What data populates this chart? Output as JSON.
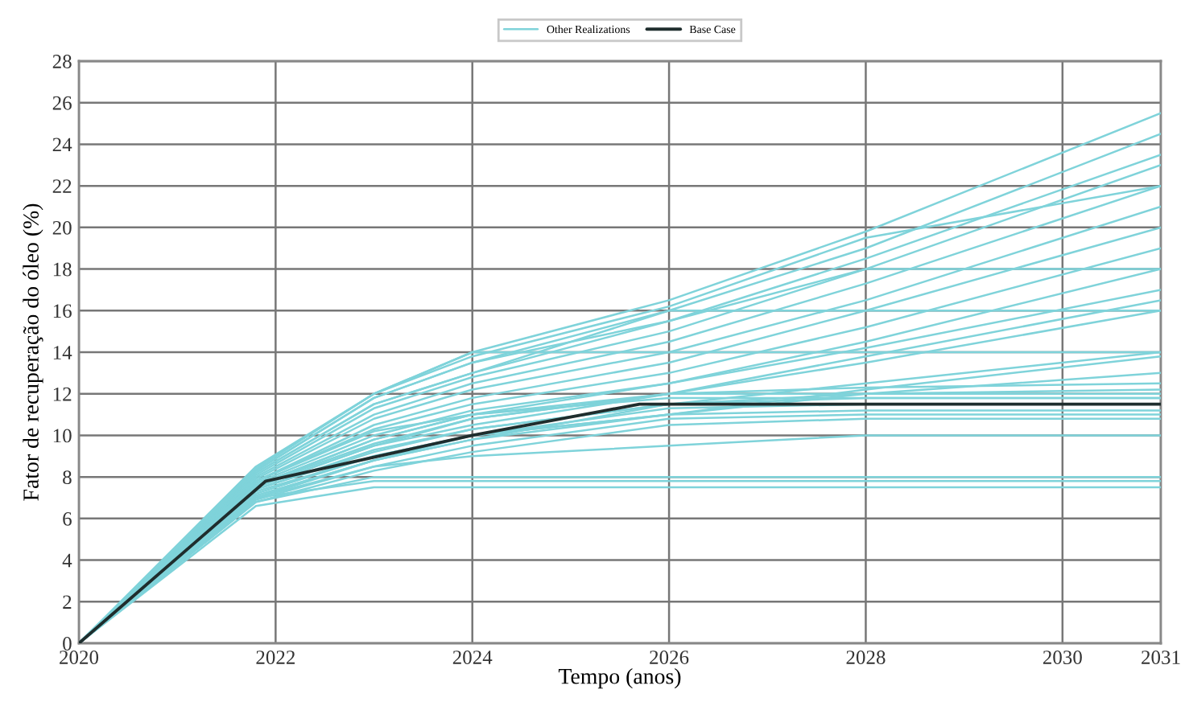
{
  "chart_data": {
    "type": "line",
    "xlabel": "Tempo (anos)",
    "ylabel": "Fator de recuperação do óleo (%)",
    "xlim": [
      2020,
      2031
    ],
    "xticks": [
      2020,
      2022,
      2024,
      2026,
      2028,
      2030,
      2031
    ],
    "ylim": [
      0,
      28
    ],
    "yticks": [
      0,
      2,
      4,
      6,
      8,
      10,
      12,
      14,
      16,
      18,
      20,
      22,
      24,
      26,
      28
    ],
    "grid": true,
    "legend": "top",
    "x": [
      2020,
      2021.8,
      2023,
      2024,
      2026,
      2028,
      2031
    ],
    "series": [
      {
        "name": "Other Realizations",
        "color": "#7fd3da",
        "values": [
          0,
          8.5,
          12,
          14,
          16.5,
          19.8,
          25.5
        ]
      },
      {
        "color": "#7fd3da",
        "values": [
          0,
          8.3,
          11.8,
          13.5,
          16,
          19,
          24.5
        ]
      },
      {
        "color": "#7fd3da",
        "values": [
          0,
          8.2,
          11.5,
          13,
          15.5,
          18.5,
          23.5
        ]
      },
      {
        "color": "#7fd3da",
        "values": [
          0,
          8.1,
          11.3,
          12.8,
          15,
          18,
          23
        ]
      },
      {
        "color": "#7fd3da",
        "values": [
          0,
          8,
          11,
          12.5,
          14.5,
          17.3,
          22
        ]
      },
      {
        "color": "#7fd3da",
        "values": [
          0,
          7.9,
          10.8,
          12.2,
          14,
          16.5,
          21
        ]
      },
      {
        "color": "#7fd3da",
        "values": [
          0,
          7.8,
          10.5,
          11.8,
          13.5,
          16,
          20
        ]
      },
      {
        "color": "#7fd3da",
        "values": [
          0,
          7.8,
          10.3,
          11.5,
          13,
          15.2,
          19
        ]
      },
      {
        "color": "#7fd3da",
        "values": [
          0,
          7.7,
          10,
          11.2,
          12.5,
          14.5,
          18
        ]
      },
      {
        "color": "#7fd3da",
        "values": [
          0,
          7.6,
          9.8,
          11,
          12.5,
          14.2,
          17
        ]
      },
      {
        "color": "#7fd3da",
        "values": [
          0,
          7.6,
          9.6,
          10.8,
          12,
          13.8,
          16.5
        ]
      },
      {
        "color": "#7fd3da",
        "values": [
          0,
          7.5,
          9.5,
          10.5,
          12,
          13.5,
          16
        ]
      },
      {
        "color": "#7fd3da",
        "values": [
          0,
          7.4,
          9.3,
          10.3,
          11.5,
          12.5,
          14
        ]
      },
      {
        "color": "#7fd3da",
        "values": [
          0,
          7.3,
          9,
          10,
          11,
          12,
          13
        ]
      },
      {
        "color": "#7fd3da",
        "values": [
          0,
          8.4,
          12,
          14,
          14,
          14,
          14
        ]
      },
      {
        "color": "#7fd3da",
        "values": [
          0,
          8.2,
          11.5,
          13,
          16,
          16,
          16
        ]
      },
      {
        "color": "#7fd3da",
        "values": [
          0,
          8.3,
          11.8,
          13.5,
          15.5,
          18,
          18
        ]
      },
      {
        "color": "#7fd3da",
        "values": [
          0,
          8.4,
          12,
          13.8,
          16.2,
          19.5,
          22
        ]
      },
      {
        "color": "#7fd3da",
        "values": [
          0,
          7.5,
          9.5,
          10.8,
          12,
          12.3,
          12.5
        ]
      },
      {
        "color": "#7fd3da",
        "values": [
          0,
          7.6,
          9.8,
          11,
          12,
          12,
          12
        ]
      },
      {
        "color": "#7fd3da",
        "values": [
          0,
          7.4,
          9.2,
          10.3,
          11.5,
          11.8,
          11.8
        ]
      },
      {
        "color": "#7fd3da",
        "values": [
          0,
          7.2,
          9,
          10,
          11.3,
          11.5,
          11.5
        ]
      },
      {
        "color": "#7fd3da",
        "values": [
          0,
          7,
          8.8,
          9.8,
          11,
          11.2,
          11.2
        ]
      },
      {
        "color": "#7fd3da",
        "values": [
          0,
          7.8,
          10.2,
          11,
          11.8,
          11.8,
          11.8
        ]
      },
      {
        "color": "#7fd3da",
        "values": [
          0,
          7,
          8.5,
          9.5,
          10.8,
          11,
          11
        ]
      },
      {
        "color": "#7fd3da",
        "values": [
          0,
          6.8,
          8.3,
          9.2,
          10.5,
          10.8,
          10.8
        ]
      },
      {
        "color": "#7fd3da",
        "values": [
          0,
          7.1,
          8.8,
          9.8,
          11.5,
          12,
          12.2
        ]
      },
      {
        "color": "#7fd3da",
        "values": [
          0,
          6.8,
          8,
          8,
          8,
          8,
          8
        ]
      },
      {
        "color": "#7fd3da",
        "values": [
          0,
          7,
          7.8,
          7.8,
          7.8,
          7.8,
          7.8
        ]
      },
      {
        "color": "#7fd3da",
        "values": [
          0,
          6.6,
          7.5,
          7.5,
          7.5,
          7.5,
          7.5
        ]
      },
      {
        "color": "#7fd3da",
        "values": [
          0,
          6.9,
          8.5,
          9,
          9.5,
          10,
          10
        ]
      },
      {
        "color": "#7fd3da",
        "values": [
          0,
          7.1,
          8.8,
          10,
          11,
          12.2,
          13.8
        ]
      },
      {
        "name": "Base Case",
        "color": "#1f2d2d",
        "x": [
          2020,
          2021.9,
          2024,
          2025.7,
          2031
        ],
        "values": [
          0,
          7.8,
          10,
          11.5,
          11.5
        ]
      }
    ]
  }
}
